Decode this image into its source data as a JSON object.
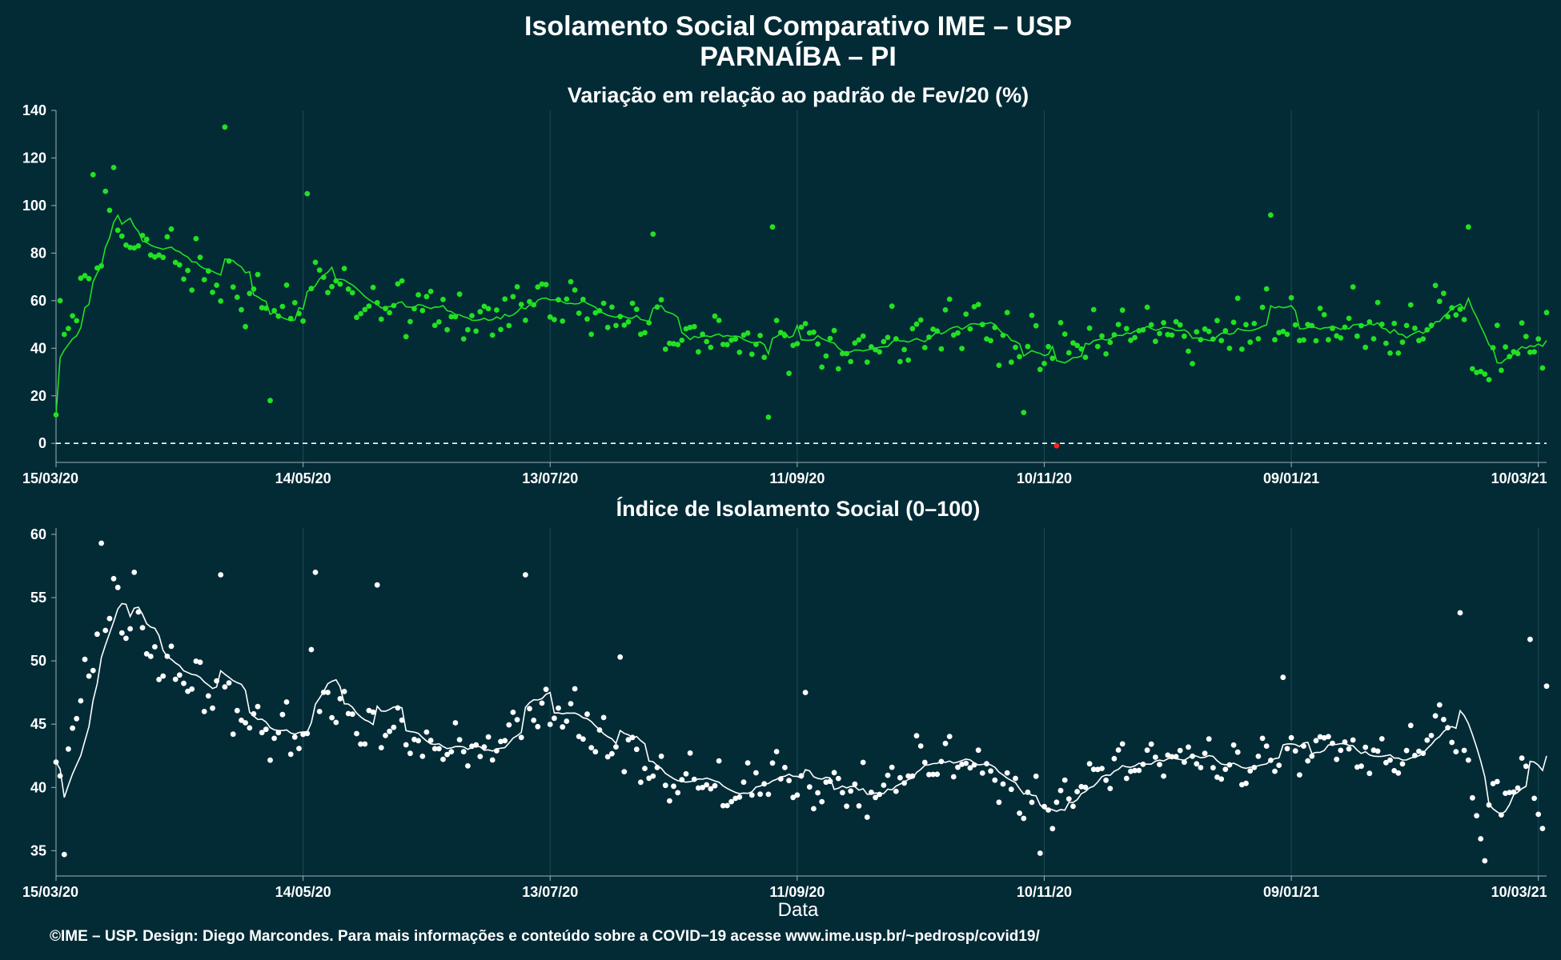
{
  "title_line1": "Isolamento Social Comparativo IME – USP",
  "title_line2": "PARNAÍBA – PI",
  "xlabel": "Data",
  "credit": "©IME – USP. Design: Diego Marcondes. Para mais informações e conteúdo sobre a COVID−19 acesse www.ime.usp.br/~pedrosp/covid19/",
  "colors": {
    "background": "#022b36",
    "variation": "#22e022",
    "index": "#ffffff",
    "negative": "#ff2020",
    "grid": "#1d4a55"
  },
  "chart_data": [
    {
      "type": "scatter",
      "title": "Variação em relação ao padrão de Fev/20 (%)",
      "x_ticks": [
        "15/03/20",
        "14/05/20",
        "13/07/20",
        "11/09/20",
        "10/11/20",
        "09/01/21",
        "10/03/21"
      ],
      "y_ticks": [
        "0",
        "20",
        "40",
        "60",
        "80",
        "100",
        "120",
        "140"
      ],
      "ylim": [
        -8,
        140
      ],
      "start_date": "2020-03-15",
      "end_date": "2021-03-12",
      "reference_line": 0,
      "moving_average": true,
      "anchors": [
        {
          "x": "2020-03-15",
          "y": 36
        },
        {
          "x": "2020-03-20",
          "y": 55
        },
        {
          "x": "2020-03-28",
          "y": 90
        },
        {
          "x": "2020-04-05",
          "y": 84
        },
        {
          "x": "2020-04-15",
          "y": 74
        },
        {
          "x": "2020-04-25",
          "y": 66
        },
        {
          "x": "2020-05-05",
          "y": 58
        },
        {
          "x": "2020-05-14",
          "y": 55
        },
        {
          "x": "2020-05-18",
          "y": 68
        },
        {
          "x": "2020-05-30",
          "y": 58
        },
        {
          "x": "2020-06-15",
          "y": 54
        },
        {
          "x": "2020-07-01",
          "y": 55
        },
        {
          "x": "2020-07-13",
          "y": 60
        },
        {
          "x": "2020-07-30",
          "y": 53
        },
        {
          "x": "2020-08-10",
          "y": 46
        },
        {
          "x": "2020-08-20",
          "y": 41
        },
        {
          "x": "2020-09-11",
          "y": 42
        },
        {
          "x": "2020-09-25",
          "y": 40
        },
        {
          "x": "2020-10-10",
          "y": 47
        },
        {
          "x": "2020-10-25",
          "y": 50
        },
        {
          "x": "2020-11-10",
          "y": 36
        },
        {
          "x": "2020-11-20",
          "y": 43
        },
        {
          "x": "2020-12-05",
          "y": 48
        },
        {
          "x": "2020-12-20",
          "y": 44
        },
        {
          "x": "2021-01-05",
          "y": 50
        },
        {
          "x": "2021-01-20",
          "y": 49
        },
        {
          "x": "2021-02-05",
          "y": 47
        },
        {
          "x": "2021-02-16",
          "y": 58
        },
        {
          "x": "2021-02-24",
          "y": 32
        },
        {
          "x": "2021-03-04",
          "y": 42
        },
        {
          "x": "2021-03-12",
          "y": 36
        }
      ],
      "highlighted_points": [
        {
          "x": "2020-03-15",
          "y": 12
        },
        {
          "x": "2020-03-16",
          "y": 60
        },
        {
          "x": "2020-03-24",
          "y": 113
        },
        {
          "x": "2020-03-27",
          "y": 106
        },
        {
          "x": "2020-03-29",
          "y": 116
        },
        {
          "x": "2020-04-25",
          "y": 133
        },
        {
          "x": "2020-05-06",
          "y": 18
        },
        {
          "x": "2020-05-15",
          "y": 105
        },
        {
          "x": "2020-08-07",
          "y": 88
        },
        {
          "x": "2020-09-04",
          "y": 11
        },
        {
          "x": "2020-09-05",
          "y": 91
        },
        {
          "x": "2020-11-05",
          "y": 13
        },
        {
          "x": "2020-11-13",
          "y": -1
        },
        {
          "x": "2021-01-04",
          "y": 96
        },
        {
          "x": "2021-02-21",
          "y": 91
        },
        {
          "x": "2021-03-12",
          "y": 55
        }
      ]
    },
    {
      "type": "scatter",
      "title": "Índice de Isolamento Social (0–100)",
      "x_ticks": [
        "15/03/20",
        "14/05/20",
        "13/07/20",
        "11/09/20",
        "10/11/20",
        "09/01/21",
        "10/03/21"
      ],
      "y_ticks": [
        "35",
        "40",
        "45",
        "50",
        "55",
        "60"
      ],
      "ylim": [
        33,
        60.5
      ],
      "start_date": "2020-03-15",
      "end_date": "2021-03-12",
      "moving_average": true,
      "anchors": [
        {
          "x": "2020-03-15",
          "y": 40
        },
        {
          "x": "2020-03-20",
          "y": 45
        },
        {
          "x": "2020-03-27",
          "y": 54
        },
        {
          "x": "2020-04-05",
          "y": 51
        },
        {
          "x": "2020-04-15",
          "y": 48.8
        },
        {
          "x": "2020-04-25",
          "y": 47
        },
        {
          "x": "2020-05-05",
          "y": 44.5
        },
        {
          "x": "2020-05-14",
          "y": 43.5
        },
        {
          "x": "2020-05-16",
          "y": 48
        },
        {
          "x": "2020-05-28",
          "y": 45
        },
        {
          "x": "2020-06-15",
          "y": 43
        },
        {
          "x": "2020-07-01",
          "y": 43.5
        },
        {
          "x": "2020-07-13",
          "y": 46
        },
        {
          "x": "2020-07-30",
          "y": 43
        },
        {
          "x": "2020-08-10",
          "y": 40.5
        },
        {
          "x": "2020-08-20",
          "y": 40
        },
        {
          "x": "2020-09-11",
          "y": 40.5
        },
        {
          "x": "2020-09-25",
          "y": 39
        },
        {
          "x": "2020-10-10",
          "y": 41.5
        },
        {
          "x": "2020-10-25",
          "y": 42
        },
        {
          "x": "2020-11-10",
          "y": 37.5
        },
        {
          "x": "2020-11-20",
          "y": 40.5
        },
        {
          "x": "2020-12-05",
          "y": 42
        },
        {
          "x": "2020-12-20",
          "y": 41.5
        },
        {
          "x": "2021-01-05",
          "y": 42
        },
        {
          "x": "2021-01-20",
          "y": 43
        },
        {
          "x": "2021-02-05",
          "y": 41.5
        },
        {
          "x": "2021-02-15",
          "y": 46
        },
        {
          "x": "2021-02-24",
          "y": 37
        },
        {
          "x": "2021-03-05",
          "y": 40.5
        },
        {
          "x": "2021-03-12",
          "y": 37
        }
      ],
      "highlighted_points": [
        {
          "x": "2020-03-15",
          "y": 42
        },
        {
          "x": "2020-03-17",
          "y": 34.7
        },
        {
          "x": "2020-03-26",
          "y": 59.3
        },
        {
          "x": "2020-03-30",
          "y": 55.8
        },
        {
          "x": "2020-04-03",
          "y": 57
        },
        {
          "x": "2020-04-24",
          "y": 56.8
        },
        {
          "x": "2020-05-17",
          "y": 57
        },
        {
          "x": "2020-06-01",
          "y": 56
        },
        {
          "x": "2020-07-07",
          "y": 56.8
        },
        {
          "x": "2020-07-30",
          "y": 50.3
        },
        {
          "x": "2020-09-13",
          "y": 47.5
        },
        {
          "x": "2020-11-09",
          "y": 34.8
        },
        {
          "x": "2021-01-07",
          "y": 48.7
        },
        {
          "x": "2021-02-19",
          "y": 53.8
        },
        {
          "x": "2021-02-25",
          "y": 34.2
        },
        {
          "x": "2021-03-08",
          "y": 51.7
        },
        {
          "x": "2021-03-12",
          "y": 48
        }
      ]
    }
  ]
}
